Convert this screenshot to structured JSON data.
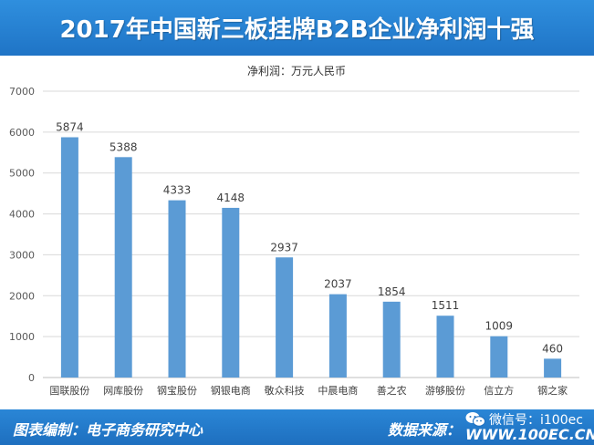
{
  "header": {
    "title": "2017年中国新三板挂牌B2B企业净利润十强"
  },
  "chart_data": {
    "type": "bar",
    "title": "2017年中国新三板挂牌B2B企业净利润十强",
    "subtitle": "净利润：万元人民币",
    "xlabel": "",
    "ylabel": "",
    "categories": [
      "国联股份",
      "网库股份",
      "钢宝股份",
      "钢银电商",
      "敬众科技",
      "中晨电商",
      "善之农",
      "游够股份",
      "信立方",
      "钢之家"
    ],
    "values": [
      5874,
      5388,
      4333,
      4148,
      2937,
      2037,
      1854,
      1511,
      1009,
      460
    ],
    "ylim": [
      0,
      7000
    ],
    "yticks": [
      0,
      1000,
      2000,
      3000,
      4000,
      5000,
      6000,
      7000
    ],
    "grid": true,
    "bar_color": "#5b9bd5"
  },
  "footer": {
    "left": "图表编制：电子商务研究中心",
    "right": "数据来源：",
    "wechat": "微信号：i100ec",
    "url": "WWW.100EC.CN"
  }
}
